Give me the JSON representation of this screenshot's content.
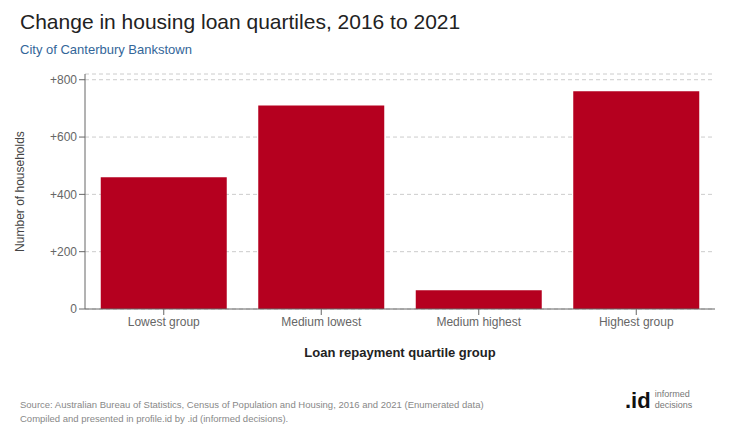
{
  "chart_data": {
    "type": "bar",
    "title": "Change in housing loan quartiles, 2016 to 2021",
    "subtitle": "City of Canterbury Bankstown",
    "categories": [
      "Lowest group",
      "Medium lowest",
      "Medium highest",
      "Highest group"
    ],
    "values": [
      460,
      710,
      65,
      760
    ],
    "color": "#B5001F",
    "xlabel": "Loan repayment quartile group",
    "ylabel": "Number of households",
    "ylim": [
      0,
      820
    ],
    "yticks": [
      0,
      {
        "value": 200,
        "label": "+200"
      },
      {
        "value": 400,
        "label": "+400"
      },
      {
        "value": 600,
        "label": "+600"
      },
      {
        "value": 800,
        "label": "+800"
      }
    ],
    "grid": true,
    "source": "Source: Australian Bureau of Statistics, Census of Population and Housing, 2016 and 2021 (Enumerated data)\nCompiled and presented in profile.id by .id (informed decisions).",
    "annotations": [
      ".id",
      "informed\ndecisions"
    ]
  }
}
